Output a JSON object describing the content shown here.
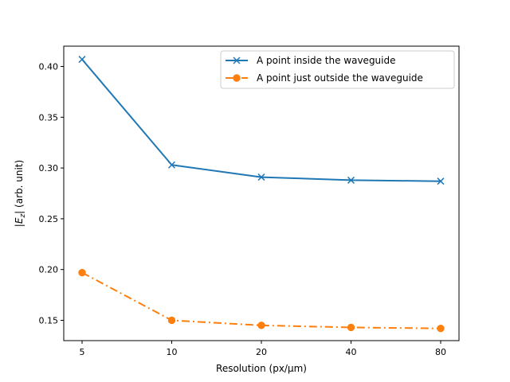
{
  "chart_data": {
    "type": "line",
    "categories": [
      "5",
      "10",
      "20",
      "40",
      "80"
    ],
    "x": [
      5,
      10,
      20,
      40,
      80
    ],
    "xlabel": "Resolution (px/µm)",
    "ylabel_prefix": "|",
    "ylabel_var": "E",
    "ylabel_sub": "z",
    "ylabel_suffix": "| (arb. unit)",
    "ylim": [
      0.13,
      0.42
    ],
    "yticks": [
      0.15,
      0.2,
      0.25,
      0.3,
      0.35,
      0.4
    ],
    "ytick_labels": [
      "0.15",
      "0.20",
      "0.25",
      "0.30",
      "0.35",
      "0.40"
    ],
    "grid": false,
    "legend_position": "top-right",
    "series": [
      {
        "name": "A point inside the waveguide",
        "values": [
          0.407,
          0.303,
          0.291,
          0.288,
          0.287
        ],
        "color": "#1f77b4",
        "marker": "x",
        "linestyle": "solid"
      },
      {
        "name": "A point just outside the waveguide",
        "values": [
          0.197,
          0.15,
          0.145,
          0.143,
          0.142
        ],
        "color": "#ff7f0e",
        "marker": "circle",
        "linestyle": "dashdot"
      }
    ]
  }
}
